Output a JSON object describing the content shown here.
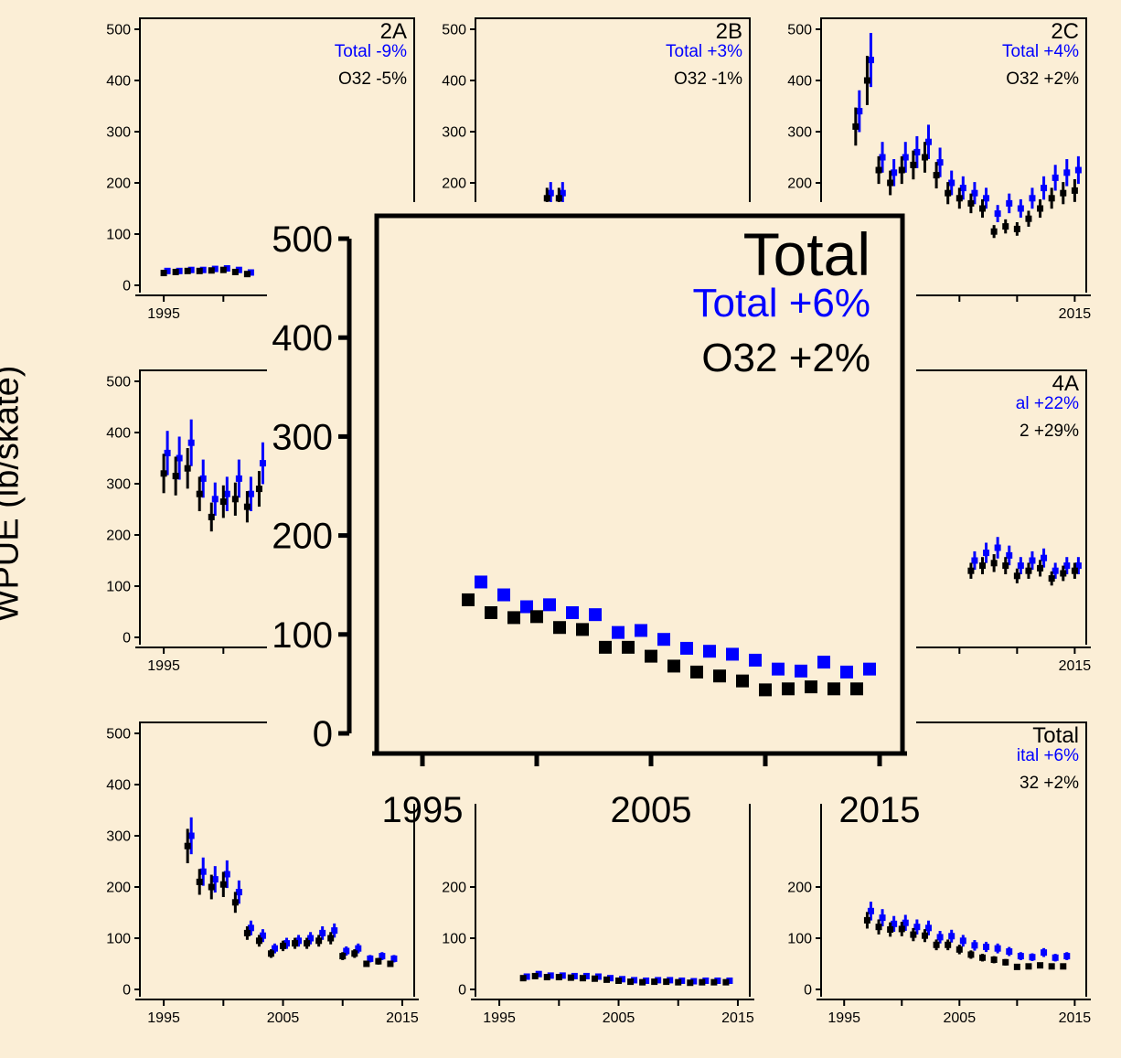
{
  "colors": {
    "background": "#fbeed6",
    "total": "#0000ff",
    "o32": "#000000"
  },
  "y_axis_label": "WPUE (lb/skate)",
  "chart_data": [
    {
      "type": "scatter",
      "title": "2A",
      "annotations": {
        "total": "Total -9%",
        "o32": "O32 -5%"
      },
      "x": [
        1995,
        1996,
        1997,
        1998,
        1999,
        2000,
        2001,
        2002
      ],
      "series": [
        {
          "name": "Total",
          "values": [
            28,
            28,
            30,
            30,
            32,
            33,
            30,
            25
          ]
        },
        {
          "name": "O32",
          "values": [
            24,
            26,
            28,
            28,
            29,
            30,
            26,
            22
          ]
        }
      ],
      "xlim": [
        1993,
        2016
      ],
      "ylim": [
        0,
        500
      ],
      "x_ticks": [
        "1995",
        "2"
      ],
      "y_ticks": [
        0,
        100,
        200,
        300,
        400,
        500
      ]
    },
    {
      "type": "scatter",
      "title": "2B",
      "annotations": {
        "total": "Total +3%",
        "o32": "O32 -1%"
      },
      "x": [
        1999,
        2000
      ],
      "series": [
        {
          "name": "Total",
          "values": [
            180,
            180
          ]
        },
        {
          "name": "O32",
          "values": [
            170,
            170
          ]
        }
      ],
      "xlim": [
        1993,
        2016
      ],
      "ylim": [
        0,
        500
      ],
      "x_ticks": [],
      "y_ticks": [
        200,
        300,
        400,
        500
      ]
    },
    {
      "type": "scatter",
      "title": "2C",
      "annotations": {
        "total": "Total +4%",
        "o32": "O32 +2%"
      },
      "x": [
        1996,
        1997,
        1998,
        1999,
        2000,
        2001,
        2002,
        2003,
        2004,
        2005,
        2006,
        2007,
        2008,
        2009,
        2010,
        2011,
        2012,
        2013,
        2014,
        2015
      ],
      "series": [
        {
          "name": "Total",
          "values": [
            340,
            440,
            250,
            220,
            250,
            260,
            280,
            240,
            200,
            190,
            180,
            170,
            140,
            160,
            150,
            170,
            190,
            210,
            220,
            225
          ]
        },
        {
          "name": "O32",
          "values": [
            310,
            400,
            225,
            200,
            225,
            235,
            250,
            215,
            180,
            170,
            160,
            150,
            105,
            115,
            110,
            130,
            150,
            170,
            180,
            185
          ]
        }
      ],
      "xlim": [
        1993,
        2016
      ],
      "ylim": [
        0,
        500
      ],
      "x_ticks": [
        "2015"
      ],
      "y_ticks": [
        200,
        300,
        400,
        500
      ]
    },
    {
      "type": "scatter",
      "title": "",
      "annotations": {
        "total": "",
        "o32": ""
      },
      "x": [
        1995,
        1996,
        1997,
        1998,
        1999,
        2000,
        2001,
        2002,
        2003,
        2004
      ],
      "series": [
        {
          "name": "Total",
          "values": [
            360,
            350,
            380,
            310,
            270,
            280,
            310,
            280,
            340,
            265
          ]
        },
        {
          "name": "O32",
          "values": [
            320,
            315,
            330,
            280,
            235,
            265,
            270,
            255,
            290,
            225
          ]
        }
      ],
      "xlim": [
        1993,
        2016
      ],
      "ylim": [
        0,
        500
      ],
      "x_ticks": [
        "1995",
        "2"
      ],
      "y_ticks": [
        0,
        100,
        200,
        300,
        400,
        500
      ]
    },
    {
      "type": "scatter",
      "title": "4A",
      "annotations": {
        "total": "al +22%",
        "o32": "2 +29%"
      },
      "x": [
        2006,
        2007,
        2008,
        2009,
        2010,
        2011,
        2012,
        2013,
        2014,
        2015
      ],
      "series": [
        {
          "name": "Total",
          "values": [
            150,
            165,
            175,
            160,
            140,
            150,
            155,
            130,
            140,
            140
          ]
        },
        {
          "name": "O32",
          "values": [
            130,
            140,
            145,
            140,
            120,
            130,
            135,
            115,
            125,
            130
          ]
        }
      ],
      "xlim": [
        1993,
        2016
      ],
      "ylim": [
        0,
        500
      ],
      "x_ticks": [
        "2015"
      ],
      "y_ticks": []
    },
    {
      "type": "scatter",
      "title": "",
      "annotations": {
        "total": "",
        "o32": ""
      },
      "x": [
        1997,
        1998,
        1999,
        2000,
        2001,
        2002,
        2003,
        2004,
        2005,
        2006,
        2007,
        2008,
        2009,
        2010,
        2011,
        2012,
        2013,
        2014
      ],
      "series": [
        {
          "name": "Total",
          "values": [
            300,
            230,
            215,
            225,
            190,
            120,
            105,
            80,
            90,
            95,
            100,
            110,
            115,
            75,
            80,
            60,
            65,
            60
          ]
        },
        {
          "name": "O32",
          "values": [
            280,
            210,
            200,
            205,
            170,
            110,
            95,
            70,
            85,
            90,
            90,
            95,
            100,
            65,
            70,
            50,
            55,
            50
          ]
        }
      ],
      "xlim": [
        1993,
        2016
      ],
      "ylim": [
        0,
        500
      ],
      "x_ticks": [
        "1995",
        "2005",
        "2015"
      ],
      "y_ticks": [
        0,
        100,
        200,
        300,
        400,
        500
      ]
    },
    {
      "type": "scatter",
      "title": "",
      "annotations": {
        "total": "",
        "o32": ""
      },
      "x": [
        1997,
        1998,
        1999,
        2000,
        2001,
        2002,
        2003,
        2004,
        2005,
        2006,
        2007,
        2008,
        2009,
        2010,
        2011,
        2012,
        2013,
        2014
      ],
      "series": [
        {
          "name": "Total",
          "values": [
            25,
            30,
            27,
            27,
            26,
            26,
            25,
            22,
            20,
            18,
            17,
            18,
            18,
            17,
            16,
            17,
            17,
            17
          ]
        },
        {
          "name": "O32",
          "values": [
            22,
            26,
            24,
            24,
            23,
            22,
            21,
            19,
            17,
            15,
            14,
            15,
            15,
            14,
            13,
            14,
            14,
            14
          ]
        }
      ],
      "xlim": [
        1993,
        2016
      ],
      "ylim": [
        0,
        500
      ],
      "x_ticks": [
        "1995",
        "2005",
        "2015"
      ],
      "y_ticks": [
        0,
        100,
        200
      ]
    },
    {
      "type": "scatter",
      "title": "Total",
      "annotations": {
        "total": "ital +6%",
        "o32": "32 +2%"
      },
      "x": [
        1997,
        1998,
        1999,
        2000,
        2001,
        2002,
        2003,
        2004,
        2005,
        2006,
        2007,
        2008,
        2009,
        2010,
        2011,
        2012,
        2013,
        2014
      ],
      "series": [
        {
          "name": "Total",
          "values": [
            153,
            140,
            128,
            130,
            122,
            120,
            102,
            104,
            95,
            86,
            83,
            80,
            74,
            65,
            63,
            72,
            62,
            65
          ]
        },
        {
          "name": "O32",
          "values": [
            135,
            122,
            117,
            118,
            107,
            105,
            87,
            87,
            78,
            68,
            62,
            58,
            53,
            44,
            45,
            47,
            45,
            45
          ]
        }
      ],
      "xlim": [
        1993,
        2016
      ],
      "ylim": [
        0,
        500
      ],
      "x_ticks": [
        "1995",
        "2005",
        "2015"
      ],
      "y_ticks": [
        0,
        100,
        200
      ]
    },
    {
      "type": "scatter",
      "title": "Total",
      "annotations": {
        "total": "Total +6%",
        "o32": "O32 +2%"
      },
      "x": [
        1997,
        1998,
        1999,
        2000,
        2001,
        2002,
        2003,
        2004,
        2005,
        2006,
        2007,
        2008,
        2009,
        2010,
        2011,
        2012,
        2013,
        2014
      ],
      "series": [
        {
          "name": "Total",
          "values": [
            153,
            140,
            128,
            130,
            122,
            120,
            102,
            104,
            95,
            86,
            83,
            80,
            74,
            65,
            63,
            72,
            62,
            65
          ]
        },
        {
          "name": "O32",
          "values": [
            135,
            122,
            117,
            118,
            107,
            105,
            87,
            87,
            78,
            68,
            62,
            58,
            53,
            44,
            45,
            47,
            45,
            45
          ]
        }
      ],
      "xlim": [
        1993,
        2016
      ],
      "ylim": [
        0,
        500
      ],
      "x_ticks": [
        "1995",
        "2005",
        "2015"
      ],
      "y_ticks": [
        0,
        100,
        200,
        300,
        400,
        500
      ],
      "inset": true
    }
  ]
}
